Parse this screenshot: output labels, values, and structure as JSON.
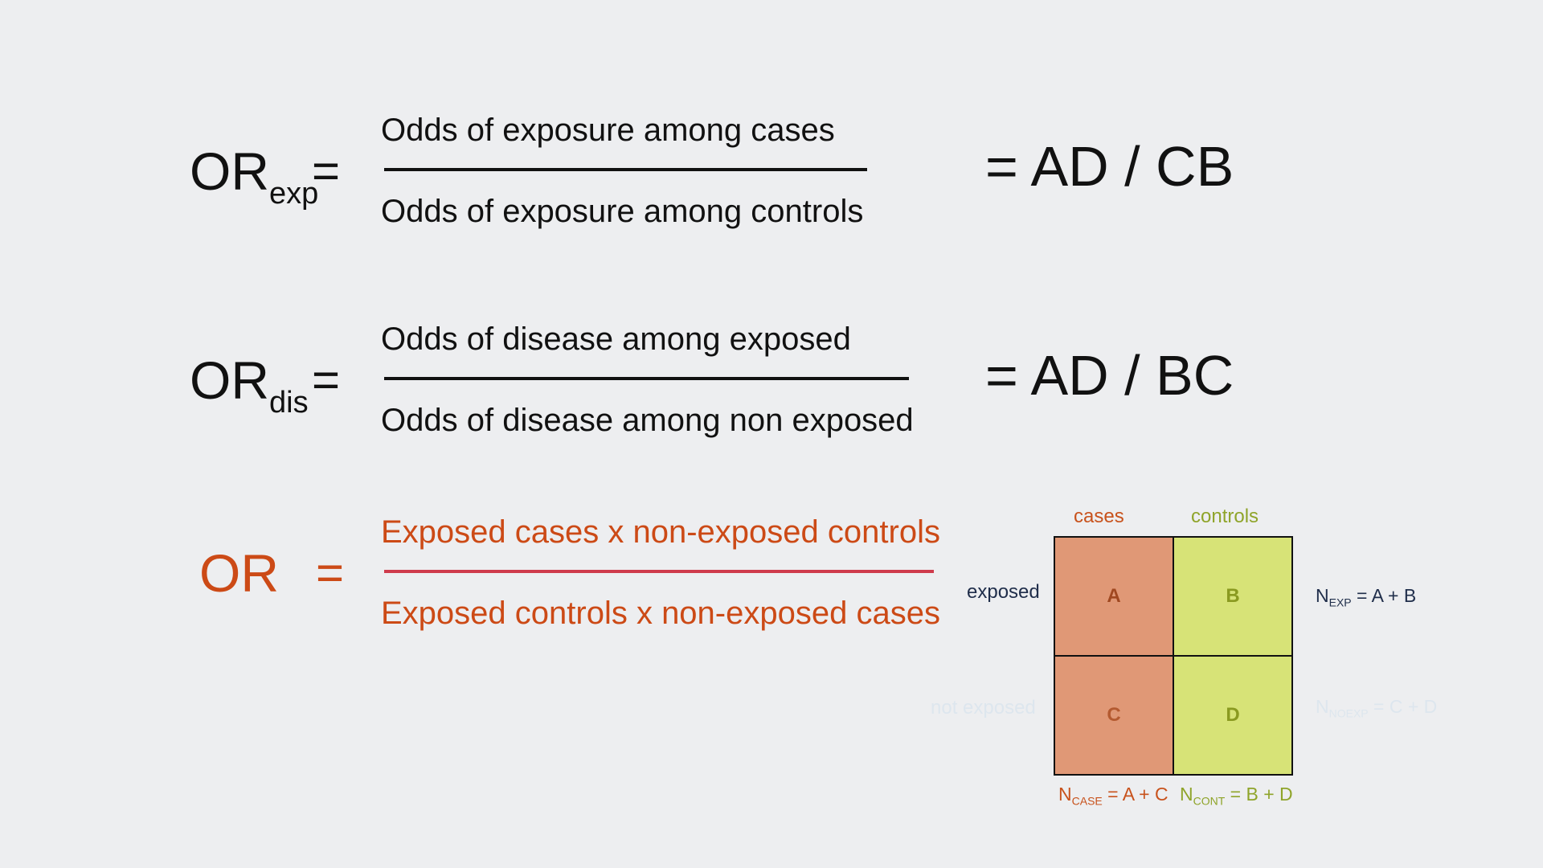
{
  "row1": {
    "lhs_main": "OR",
    "lhs_sub": "exp",
    "equals": "=",
    "numerator": "Odds of exposure among cases",
    "denominator": "Odds of exposure among controls",
    "result": "= AD / CB"
  },
  "row2": {
    "lhs_main": "OR",
    "lhs_sub": "dis",
    "equals": "=",
    "numerator": "Odds of disease among exposed",
    "denominator": "Odds of disease among non exposed",
    "result": "= AD / BC"
  },
  "row3": {
    "lhs_main": "OR",
    "equals": "=",
    "numerator": "Exposed cases x non-exposed controls",
    "denominator": "Exposed controls x non-exposed cases"
  },
  "table": {
    "col_cases": "cases",
    "col_controls": "controls",
    "row_exposed": "exposed",
    "row_not_exposed": "not exposed",
    "cell_a": "A",
    "cell_b": "B",
    "cell_c": "C",
    "cell_d": "D",
    "n_exp_main": "N",
    "n_exp_sub": "EXP",
    "n_exp_rest": " = A + B",
    "n_noexp_main": "N",
    "n_noexp_sub": "NOEXP",
    "n_noexp_rest": " = C + D",
    "n_case_main": "N",
    "n_case_sub": "CASE",
    "n_case_rest": " = A + C",
    "n_cont_main": "N",
    "n_cont_sub": "CONT",
    "n_cont_rest": " = B + D"
  },
  "colors": {
    "background": "#edeef0",
    "accent_orange": "#cc4a16",
    "divider_red": "#cf3b4c",
    "cases_fill": "#e09876",
    "controls_fill": "#d7e377",
    "navy_text": "#1f2d4a"
  }
}
